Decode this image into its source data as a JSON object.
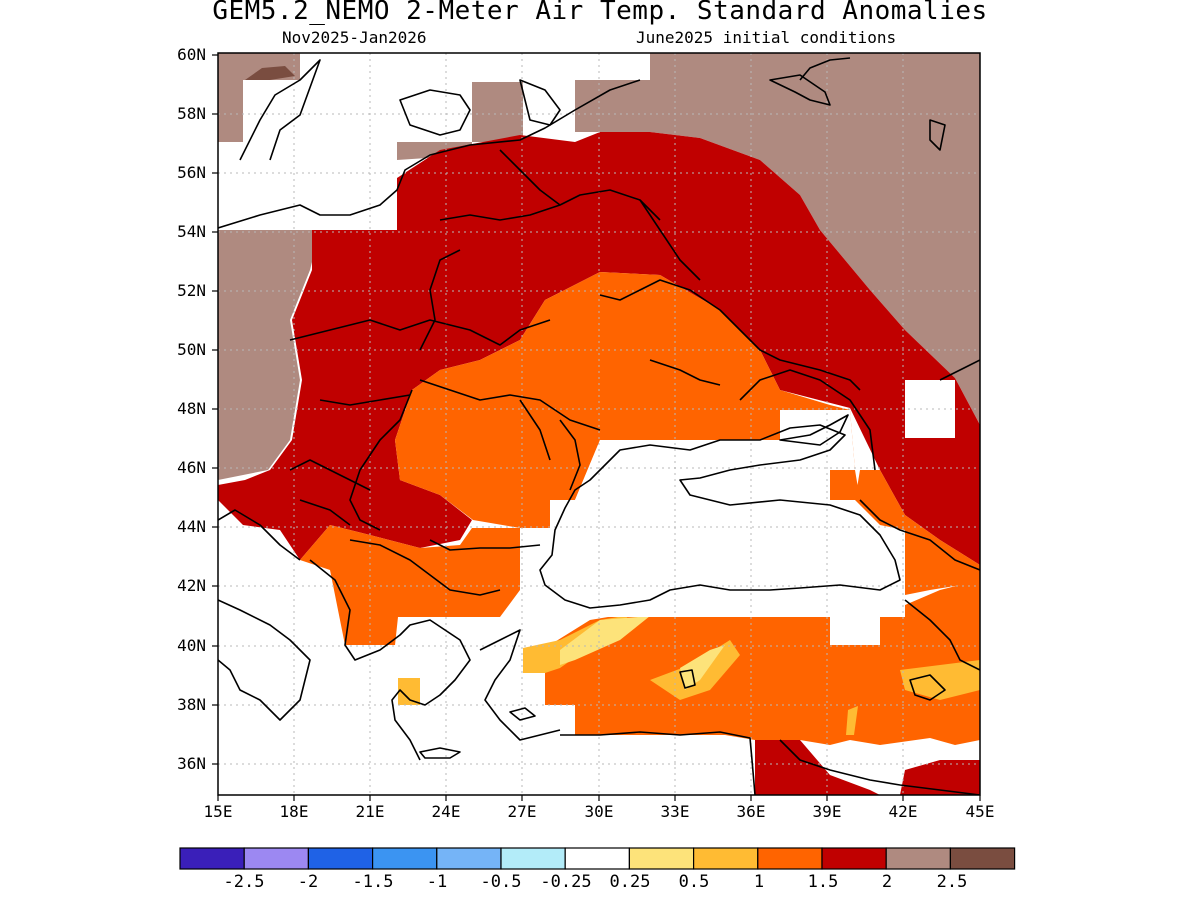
{
  "title": "GEM5.2_NEMO 2-Meter Air Temp. Standard Anomalies",
  "subtitle_left": "Nov2025-Jan2026",
  "subtitle_right": "June2025 initial conditions",
  "y_ticks": [
    "60N",
    "58N",
    "56N",
    "54N",
    "52N",
    "50N",
    "48N",
    "46N",
    "44N",
    "42N",
    "40N",
    "38N",
    "36N"
  ],
  "x_ticks": [
    "15E",
    "18E",
    "21E",
    "24E",
    "27E",
    "30E",
    "33E",
    "36E",
    "39E",
    "42E",
    "45E"
  ],
  "colorbar": {
    "colors": [
      "#3a1fb9",
      "#9c88f2",
      "#1f62e6",
      "#3b94f2",
      "#75b4f7",
      "#b3ecf9",
      "#ffffff",
      "#fde37a",
      "#ffbb33",
      "#ff6400",
      "#c00000",
      "#af8a80",
      "#7a4d40"
    ],
    "labels": [
      "-2.5",
      "-2",
      "-1.5",
      "-1",
      "-0.5",
      "-0.25",
      "0.25",
      "0.5",
      "1",
      "1.5",
      "2",
      "2.5"
    ]
  },
  "legend_colors": {
    "white": "#ffffff",
    "yellow": "#fde37a",
    "light_orange": "#ffbb33",
    "orange": "#ff6400",
    "red": "#c00000",
    "brown": "#af8a80",
    "dark_brown": "#7a4d40"
  }
}
